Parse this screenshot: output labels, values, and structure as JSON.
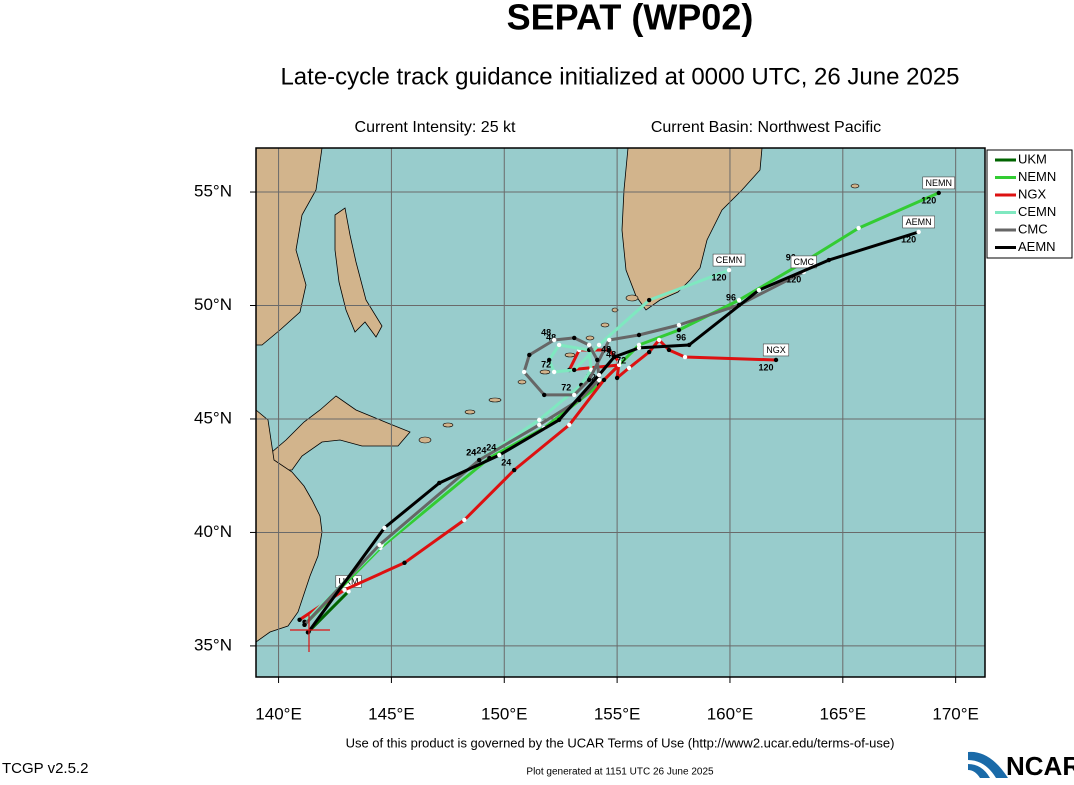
{
  "chart_data": {
    "type": "track-map",
    "title": "SEPAT (WP02)",
    "subtitle": "Late-cycle track guidance initialized at 0000 UTC, 26 June 2025",
    "intensity": "Current Intensity: 25 kt",
    "basin": "Current Basin: Northwest Pacific",
    "footer": "Use of this product is governed by the UCAR Terms of Use (http://www2.ucar.edu/terms-of-use)",
    "version": "TCGP v2.5.2",
    "generated": "Plot generated at 1151 UTC  26 June 2025",
    "logo": "NCAR",
    "xlim": [
      139,
      171.3
    ],
    "ylim": [
      33.63,
      56.94
    ],
    "xticks": [
      {
        "value": 140,
        "label": "140°E"
      },
      {
        "value": 145,
        "label": "145°E"
      },
      {
        "value": 150,
        "label": "150°E"
      },
      {
        "value": 155,
        "label": "155°E"
      },
      {
        "value": 160,
        "label": "160°E"
      },
      {
        "value": 165,
        "label": "165°E"
      },
      {
        "value": 170,
        "label": "170°E"
      }
    ],
    "yticks": [
      {
        "value": 35,
        "label": "35°N"
      },
      {
        "value": 40,
        "label": "40°N"
      },
      {
        "value": 45,
        "label": "45°N"
      },
      {
        "value": 50,
        "label": "50°N"
      },
      {
        "value": 55,
        "label": "55°N"
      }
    ],
    "grid": true,
    "legend": "right",
    "series": [
      {
        "name": "UKM",
        "color": "#006400",
        "lon": [
          141.3,
          143.1
        ],
        "lat": [
          35.6,
          37.4
        ],
        "tau_labels": [
          null,
          null
        ]
      },
      {
        "name": "NEMN",
        "color": "#33cc33",
        "lon": [
          141.15,
          144.51,
          149.34,
          151.77,
          154.2,
          155.97,
          157.74,
          160.4,
          163.05,
          165.7,
          169.25
        ],
        "lat": [
          35.93,
          39.32,
          43.28,
          44.6,
          46.5,
          48.26,
          48.92,
          50.24,
          51.78,
          53.41,
          54.96
        ],
        "tau_labels": [
          null,
          null,
          "24",
          null,
          "72",
          null,
          null,
          null,
          "96",
          null,
          "120"
        ]
      },
      {
        "name": "NGX",
        "color": "#dd1111",
        "lon": [
          140.93,
          142.92,
          145.58,
          148.23,
          150.44,
          152.88,
          154.42,
          155.09,
          152.88,
          153.32,
          154.65,
          155.09,
          155.0,
          155.53,
          156.42,
          156.86,
          157.3,
          158.01,
          162.04
        ],
        "lat": [
          36.15,
          37.47,
          38.66,
          40.55,
          42.75,
          44.74,
          46.72,
          47.38,
          47.16,
          48.04,
          48.04,
          47.51,
          46.81,
          47.25,
          47.95,
          48.48,
          48.04,
          47.73,
          47.6
        ],
        "tau_labels": [
          null,
          null,
          null,
          null,
          "24",
          null,
          null,
          null,
          null,
          null,
          null,
          "48",
          null,
          "72",
          null,
          null,
          null,
          null,
          "120"
        ]
      },
      {
        "name": "CEMN",
        "color": "#7fe8c0",
        "lon": [
          141.15,
          144.56,
          148.89,
          151.55,
          153.41,
          153.85,
          153.76,
          152.43,
          151.99,
          152.21,
          153.1,
          154.2,
          156.42,
          159.96
        ],
        "lat": [
          36.06,
          39.45,
          43.19,
          44.96,
          46.5,
          47.16,
          48.04,
          48.26,
          47.6,
          47.07,
          47.16,
          48.26,
          50.24,
          51.56
        ],
        "tau_labels": [
          null,
          null,
          "24",
          null,
          null,
          null,
          null,
          "48",
          null,
          "72",
          null,
          null,
          null,
          "120"
        ]
      },
      {
        "name": "CMC",
        "color": "#666666",
        "lon": [
          141.15,
          144.47,
          148.89,
          151.55,
          153.32,
          154.2,
          154.12,
          153.76,
          153.1,
          152.21,
          151.11,
          150.88,
          151.77,
          153.1,
          153.76,
          154.65,
          155.97,
          157.74,
          160.4,
          163.27
        ],
        "lat": [
          35.93,
          39.45,
          43.19,
          44.74,
          45.84,
          46.72,
          47.6,
          48.26,
          48.57,
          48.48,
          47.82,
          47.07,
          46.06,
          46.06,
          46.72,
          48.48,
          48.7,
          49.14,
          50.02,
          51.48
        ],
        "tau_labels": [
          null,
          null,
          "24",
          null,
          null,
          null,
          null,
          null,
          null,
          "48",
          null,
          null,
          null,
          "72",
          null,
          null,
          null,
          null,
          "96",
          "120"
        ]
      },
      {
        "name": "AEMN",
        "color": "#000000",
        "lon": [
          141.33,
          144.69,
          147.12,
          149.78,
          152.43,
          154.2,
          154.87,
          155.97,
          158.19,
          161.28,
          164.38,
          168.36
        ],
        "lat": [
          35.62,
          40.2,
          42.18,
          43.41,
          44.96,
          46.94,
          47.73,
          48.13,
          48.26,
          50.68,
          52.0,
          53.24
        ],
        "tau_labels": [
          null,
          null,
          null,
          "24",
          null,
          null,
          "48",
          null,
          "96",
          null,
          null,
          "120"
        ]
      }
    ]
  }
}
